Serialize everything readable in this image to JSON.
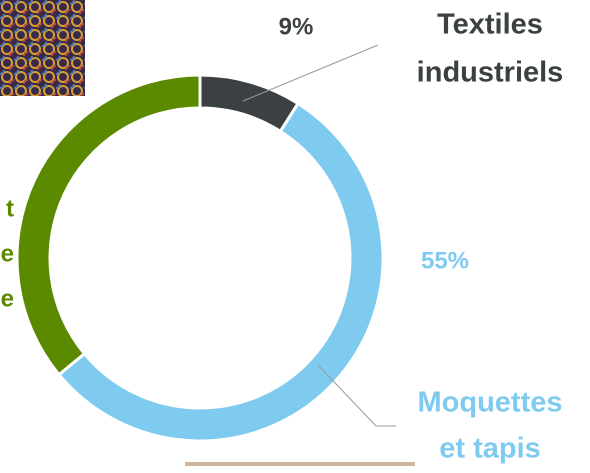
{
  "chart_data": {
    "type": "donut",
    "categories": [
      [
        "Textiles",
        "industriels"
      ],
      [
        "Moquettes",
        "et tapis"
      ],
      [
        "t",
        "e",
        "e"
      ]
    ],
    "values": [
      9,
      55,
      36
    ],
    "value_labels": [
      "9%",
      "55%",
      null
    ],
    "colors": [
      "#3b4042",
      "#7fcbef",
      "#5b8a00"
    ],
    "label_colors": [
      "#3b4042",
      "#7fcbef",
      "#5b8a00"
    ]
  }
}
